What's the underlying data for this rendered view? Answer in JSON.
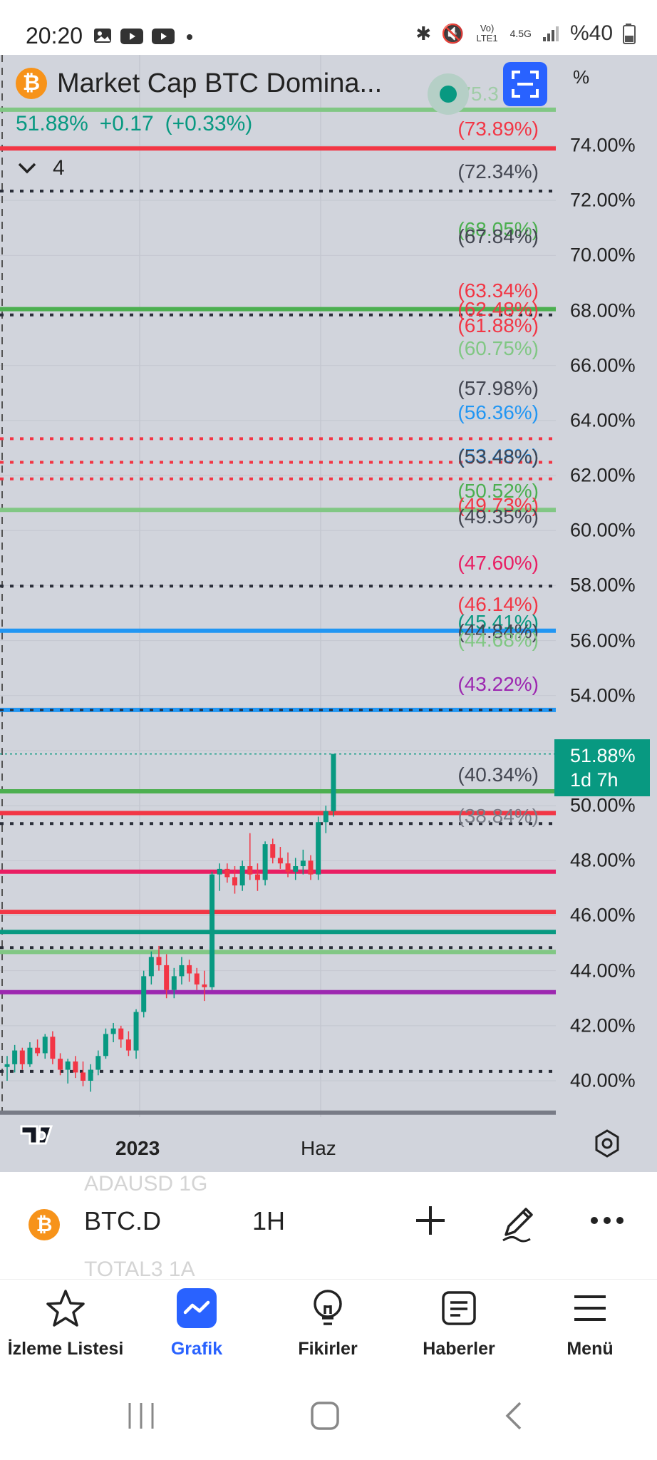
{
  "status_bar": {
    "time": "20:20",
    "network": "Vo) LTE1",
    "gen": "4.5G",
    "battery": "%40"
  },
  "header": {
    "title": "Market Cap BTC Domina...",
    "last": "51.88%",
    "change": "+0.17",
    "change_pct": "(+0.33%)",
    "collapsed_count": "4",
    "axis_unit": "%"
  },
  "price_axis": {
    "ticks": [
      "74.00%",
      "72.00%",
      "70.00%",
      "68.00%",
      "66.00%",
      "64.00%",
      "62.00%",
      "60.00%",
      "58.00%",
      "56.00%",
      "54.00%",
      "52.00%",
      "50.00%",
      "48.00%",
      "46.00%",
      "44.00%",
      "42.00%",
      "40.00%"
    ]
  },
  "current_price": {
    "value": "51.88%",
    "countdown": "1d 7h"
  },
  "time_axis": {
    "labels": [
      "2023",
      "Haz"
    ]
  },
  "level_labels": [
    {
      "text": "(75.3",
      "color": "#81c784"
    },
    {
      "text": "(73.89%)",
      "color": "#f23645"
    },
    {
      "text": "(72.34%)",
      "color": "#434651"
    },
    {
      "text": "(68.05%)",
      "color": "#4caf50"
    },
    {
      "text": "(67.84%)",
      "color": "#434651"
    },
    {
      "text": "(63.34%)",
      "color": "#f23645"
    },
    {
      "text": "(62.48%)",
      "color": "#f23645"
    },
    {
      "text": "(61.88%)",
      "color": "#f23645"
    },
    {
      "text": "(60.75%)",
      "color": "#81c784"
    },
    {
      "text": "(57.98%)",
      "color": "#434651"
    },
    {
      "text": "(56.36%)",
      "color": "#2196f3"
    },
    {
      "text": "(53.48%)",
      "color": "#2196f3"
    },
    {
      "text": "(53.48%)",
      "color": "#434651"
    },
    {
      "text": "(50.52%)",
      "color": "#4caf50"
    },
    {
      "text": "(49.73%)",
      "color": "#f23645"
    },
    {
      "text": "(49.35%)",
      "color": "#434651"
    },
    {
      "text": "(47.60%)",
      "color": "#e91e63"
    },
    {
      "text": "(46.14%)",
      "color": "#f23645"
    },
    {
      "text": "(45.41%)",
      "color": "#089981"
    },
    {
      "text": "(44.84%)",
      "color": "#434651"
    },
    {
      "text": "(44.68%)",
      "color": "#81c784"
    },
    {
      "text": "(43.22%)",
      "color": "#9c27b0"
    },
    {
      "text": "(40.34%)",
      "color": "#434651"
    },
    {
      "text": "(38.84%)",
      "color": "#787b86"
    }
  ],
  "toolbar": {
    "symbol": "BTC.D",
    "interval": "1H",
    "ghost_above": "ADAUSD   1G",
    "ghost_below": "TOTAL3   1A"
  },
  "nav": [
    {
      "label": "İzleme Listesi",
      "icon": "star-icon"
    },
    {
      "label": "Grafik",
      "icon": "chart-icon",
      "active": true
    },
    {
      "label": "Fikirler",
      "icon": "bulb-icon"
    },
    {
      "label": "Haberler",
      "icon": "news-icon"
    },
    {
      "label": "Menü",
      "icon": "menu-icon"
    }
  ],
  "chart_data": {
    "type": "candlestick",
    "title": "Market Cap BTC Dominance",
    "ylabel": "%",
    "ylim": [
      39.0,
      76.0
    ],
    "x_labels": [
      "2023",
      "Haz"
    ],
    "horizontal_levels": [
      75.3,
      73.89,
      72.34,
      68.05,
      67.84,
      63.34,
      62.48,
      61.88,
      60.75,
      57.98,
      56.36,
      53.48,
      50.52,
      49.73,
      49.35,
      47.6,
      46.14,
      45.41,
      44.84,
      44.68,
      43.22,
      40.34,
      38.84
    ],
    "candles": [
      [
        40.5,
        40.9,
        40.0,
        40.6
      ],
      [
        40.6,
        41.3,
        40.3,
        41.1
      ],
      [
        41.1,
        41.2,
        40.4,
        40.6
      ],
      [
        40.6,
        41.4,
        40.5,
        41.2
      ],
      [
        41.2,
        41.5,
        40.9,
        41.0
      ],
      [
        41.0,
        41.7,
        40.8,
        41.6
      ],
      [
        41.6,
        41.8,
        40.6,
        40.8
      ],
      [
        40.8,
        41.0,
        40.2,
        40.4
      ],
      [
        40.4,
        40.8,
        39.9,
        40.7
      ],
      [
        40.7,
        40.9,
        40.1,
        40.3
      ],
      [
        40.3,
        40.7,
        39.8,
        40.0
      ],
      [
        40.0,
        40.6,
        39.6,
        40.4
      ],
      [
        40.4,
        41.1,
        40.2,
        40.9
      ],
      [
        40.9,
        41.9,
        40.8,
        41.7
      ],
      [
        41.7,
        42.1,
        41.4,
        41.9
      ],
      [
        41.9,
        42.0,
        41.2,
        41.5
      ],
      [
        41.5,
        41.8,
        40.9,
        41.1
      ],
      [
        41.1,
        42.6,
        40.8,
        42.5
      ],
      [
        42.5,
        44.0,
        42.3,
        43.8
      ],
      [
        43.8,
        44.7,
        43.5,
        44.5
      ],
      [
        44.5,
        44.9,
        44.0,
        44.2
      ],
      [
        44.2,
        44.6,
        43.0,
        43.3
      ],
      [
        43.3,
        44.1,
        43.0,
        43.8
      ],
      [
        43.8,
        44.5,
        43.5,
        44.2
      ],
      [
        44.2,
        44.4,
        43.6,
        43.9
      ],
      [
        43.9,
        44.1,
        43.3,
        43.5
      ],
      [
        43.5,
        44.0,
        42.9,
        43.4
      ],
      [
        43.4,
        47.6,
        43.3,
        47.5
      ],
      [
        47.5,
        47.9,
        46.9,
        47.7
      ],
      [
        47.7,
        47.9,
        47.2,
        47.4
      ],
      [
        47.4,
        47.8,
        46.8,
        47.1
      ],
      [
        47.1,
        48.0,
        46.9,
        47.8
      ],
      [
        47.8,
        49.0,
        47.3,
        47.5
      ],
      [
        47.5,
        47.9,
        46.9,
        47.3
      ],
      [
        47.3,
        48.7,
        47.1,
        48.6
      ],
      [
        48.6,
        48.8,
        47.9,
        48.1
      ],
      [
        48.1,
        48.5,
        47.7,
        47.9
      ],
      [
        47.9,
        48.3,
        47.4,
        47.6
      ],
      [
        47.6,
        48.1,
        47.3,
        47.8
      ],
      [
        47.8,
        48.4,
        47.5,
        48.0
      ],
      [
        48.0,
        48.2,
        47.3,
        47.5
      ],
      [
        47.5,
        49.6,
        47.3,
        49.4
      ],
      [
        49.4,
        50.0,
        49.0,
        49.8
      ],
      [
        49.8,
        51.88,
        49.6,
        51.88
      ]
    ]
  }
}
